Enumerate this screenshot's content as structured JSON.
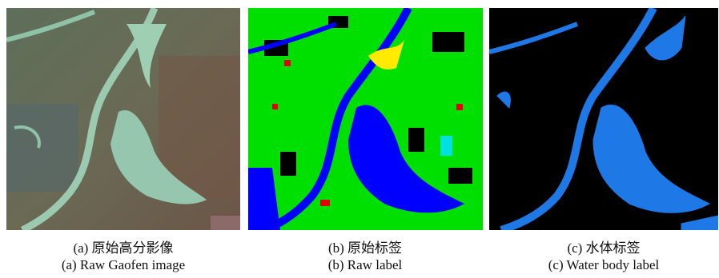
{
  "figures": [
    {
      "caption_zh": "(a) 原始高分影像",
      "caption_en": "(a) Raw Gaofen image"
    },
    {
      "caption_zh": "(b) 原始标签",
      "caption_en": "(b) Raw label"
    },
    {
      "caption_zh": "(c) 水体标签",
      "caption_en": "(c) Water body label"
    }
  ]
}
